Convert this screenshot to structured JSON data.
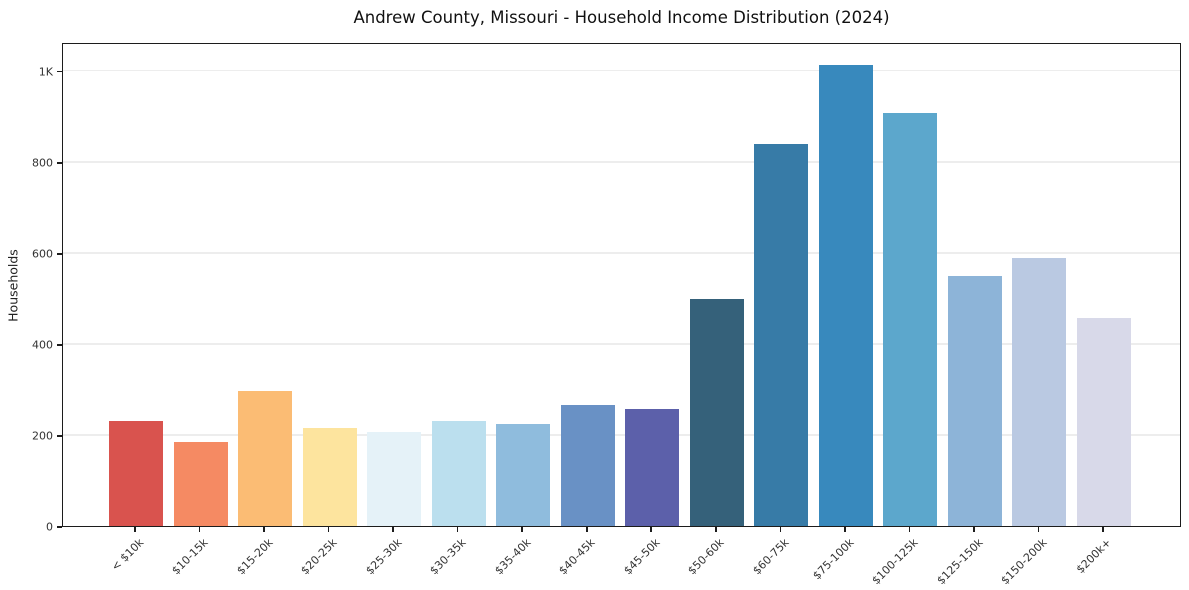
{
  "page": {
    "background": "#ffffff"
  },
  "chart_data": {
    "type": "bar",
    "title": "Andrew County, Missouri - Household Income Distribution (2024)",
    "xlabel": "",
    "ylabel": "Households",
    "categories": [
      "< $10k",
      "$10-15k",
      "$15-20k",
      "$20-25k",
      "$25-30k",
      "$30-35k",
      "$35-40k",
      "$40-45k",
      "$45-50k",
      "$50-60k",
      "$60-75k",
      "$75-100k",
      "$100-125k",
      "$125-150k",
      "$150-200k",
      "$200k+"
    ],
    "values": [
      230,
      184,
      296,
      215,
      207,
      231,
      223,
      265,
      256,
      499,
      840,
      1012,
      907,
      549,
      588,
      457
    ],
    "bar_colors": [
      "#d9534e",
      "#f58a63",
      "#fbbc74",
      "#fde49e",
      "#e5f2f8",
      "#bbdfee",
      "#8fbcdd",
      "#6991c5",
      "#5c60aa",
      "#35617a",
      "#377ba7",
      "#3889bd",
      "#5ca7cc",
      "#8db4d8",
      "#bac9e2",
      "#d8d9e9"
    ],
    "ylim": [
      0,
      1063
    ],
    "yticks": [
      {
        "value": 0,
        "label": "0"
      },
      {
        "value": 200,
        "label": "200"
      },
      {
        "value": 400,
        "label": "400"
      },
      {
        "value": 600,
        "label": "600"
      },
      {
        "value": 800,
        "label": "800"
      },
      {
        "value": 1000,
        "label": "1K"
      }
    ],
    "grid": "horizontal",
    "legend": "none",
    "frame": "full-box"
  }
}
